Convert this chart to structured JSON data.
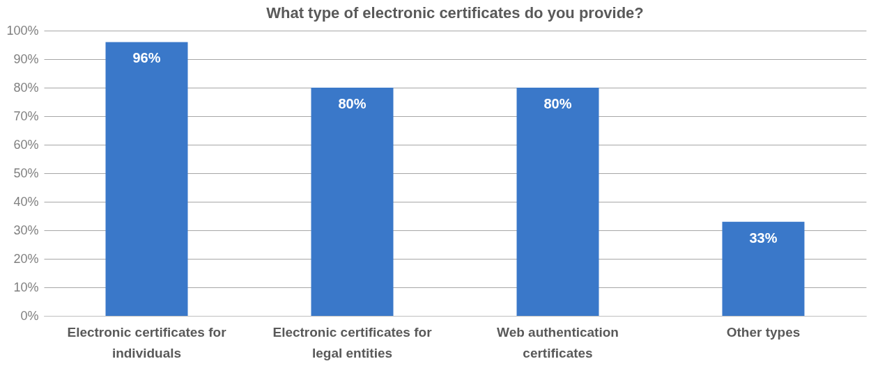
{
  "chart_data": {
    "type": "bar",
    "title": "What type of electronic certificates do you provide?",
    "categories": [
      "Electronic certificates for individuals",
      "Electronic certificates for legal entities",
      "Web authentication certificates",
      "Other types"
    ],
    "values": [
      96,
      80,
      80,
      33
    ],
    "value_labels": [
      "96%",
      "80%",
      "80%",
      "33%"
    ],
    "color": "#3a78c9",
    "ylim": [
      0,
      100
    ],
    "yticks": [
      {
        "value": 0,
        "label": "0%"
      },
      {
        "value": 10,
        "label": "10%"
      },
      {
        "value": 20,
        "label": "20%"
      },
      {
        "value": 30,
        "label": "30%"
      },
      {
        "value": 40,
        "label": "40%"
      },
      {
        "value": 50,
        "label": "50%"
      },
      {
        "value": 60,
        "label": "60%"
      },
      {
        "value": 70,
        "label": "70%"
      },
      {
        "value": 80,
        "label": "80%"
      },
      {
        "value": 90,
        "label": "90%"
      },
      {
        "value": 100,
        "label": "100%"
      }
    ],
    "grid": "y"
  }
}
